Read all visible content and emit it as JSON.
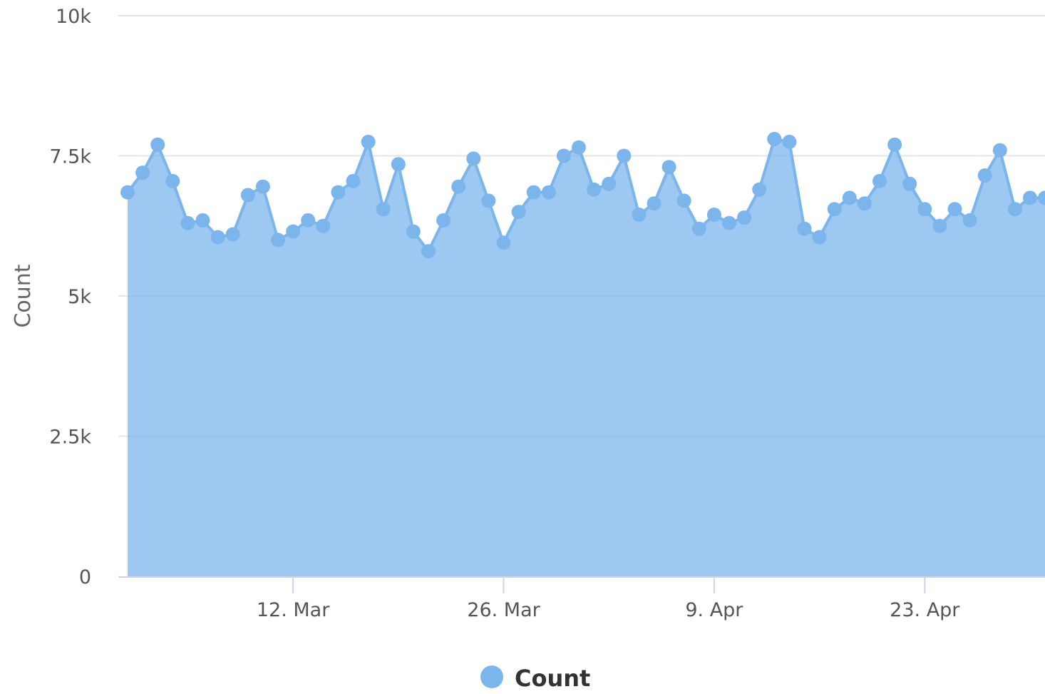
{
  "chart_data": {
    "type": "area",
    "title": "",
    "xlabel": "",
    "ylabel": "Count",
    "ylim": [
      0,
      10000
    ],
    "xlim": [
      "2018-03-01",
      "2018-05-02"
    ],
    "grid": true,
    "legend_position": "bottom-center",
    "y_ticks": [
      {
        "value": 0,
        "label": "0"
      },
      {
        "value": 2500,
        "label": "2.5k"
      },
      {
        "value": 5000,
        "label": "5k"
      },
      {
        "value": 7500,
        "label": "7.5k"
      },
      {
        "value": 10000,
        "label": "10k"
      }
    ],
    "x_ticks": [
      {
        "value": "2018-03-12",
        "label": "12. Mar"
      },
      {
        "value": "2018-03-26",
        "label": "26. Mar"
      },
      {
        "value": "2018-04-09",
        "label": "9. Apr"
      },
      {
        "value": "2018-04-23",
        "label": "23. Apr"
      }
    ],
    "series": [
      {
        "name": "Count",
        "color": "#7cb5ec",
        "start_date": "2018-03-01",
        "values": [
          6850,
          7200,
          7700,
          7050,
          6300,
          6350,
          6050,
          6100,
          6800,
          6950,
          6000,
          6150,
          6350,
          6250,
          6850,
          7050,
          7750,
          6550,
          7350,
          6150,
          5800,
          6350,
          6950,
          7450,
          6700,
          5950,
          6500,
          6850,
          6850,
          7500,
          7650,
          6900,
          7000,
          7500,
          6450,
          6650,
          7300,
          6700,
          6200,
          6450,
          6300,
          6400,
          6900,
          7800,
          7750,
          6200,
          6050,
          6550,
          6750,
          6650,
          7050,
          7700,
          7000,
          6550,
          6250,
          6550,
          6350,
          7150,
          7600,
          6550,
          6750,
          6750
        ]
      }
    ]
  }
}
